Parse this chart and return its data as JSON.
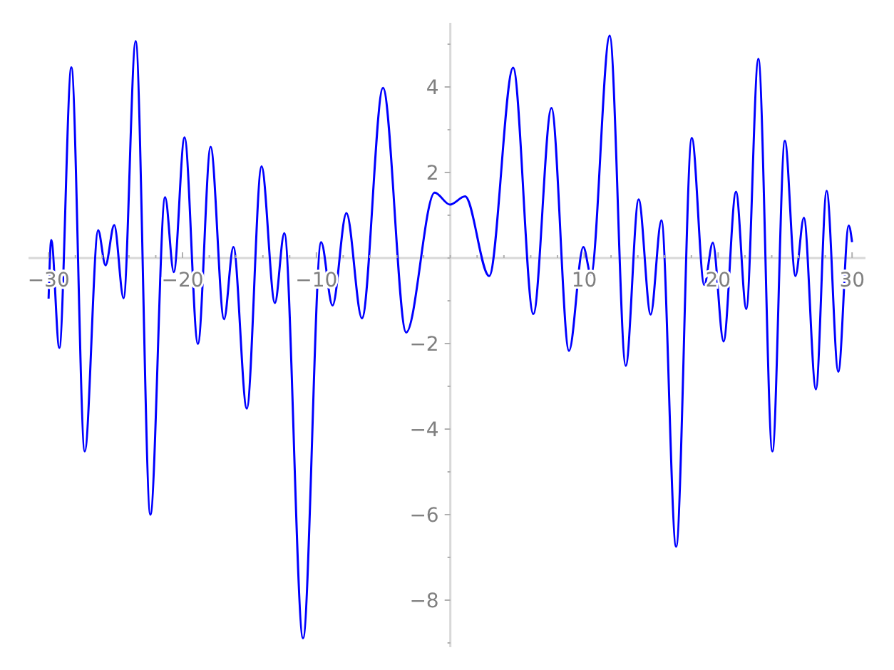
{
  "chart_data": {
    "type": "line",
    "color": "#0000ff",
    "line_style": "solid",
    "marker": "none",
    "x": [
      -30,
      -29.8,
      -29.2,
      -28.3,
      -27.3,
      -26.3,
      -25.75,
      -25.1,
      -24.4,
      -23.5,
      -22.4,
      -21.3,
      -20.65,
      -19.85,
      -18.85,
      -17.9,
      -16.9,
      -16.2,
      -15.2,
      -14.1,
      -13.1,
      -12.4,
      -11.0,
      -9.65,
      -8.8,
      -7.76,
      -6.6,
      -5.03,
      -3.3,
      -1.17,
      -0.03,
      1.1,
      2.9,
      4.69,
      6.2,
      7.55,
      8.86,
      9.93,
      10.5,
      11.9,
      13.1,
      14.06,
      14.96,
      15.76,
      16.86,
      18.03,
      18.96,
      19.6,
      20.4,
      21.33,
      22.1,
      23.0,
      24.05,
      24.98,
      25.77,
      26.4,
      27.3,
      28.1,
      28.97,
      29.75,
      30
    ],
    "values": [
      -0.95,
      0.42,
      -2.1,
      4.46,
      -4.52,
      0.65,
      -0.17,
      0.77,
      -0.94,
      5.07,
      -6.0,
      1.42,
      -0.33,
      2.82,
      -2.01,
      2.6,
      -1.43,
      0.26,
      -3.52,
      2.14,
      -1.05,
      0.58,
      -8.89,
      0.37,
      -1.11,
      1.05,
      -1.41,
      3.98,
      -1.74,
      1.53,
      1.25,
      1.44,
      -0.42,
      4.45,
      -1.31,
      3.51,
      -2.17,
      0.26,
      -0.39,
      5.2,
      -2.52,
      1.37,
      -1.32,
      0.88,
      -6.75,
      2.81,
      -0.63,
      0.36,
      -1.95,
      1.55,
      -1.19,
      4.66,
      -4.52,
      2.74,
      -0.42,
      0.94,
      -3.07,
      1.57,
      -2.66,
      0.76,
      0.37
    ],
    "xlim": [
      -31.5,
      31
    ],
    "ylim": [
      -9.1,
      5.5
    ],
    "xticks": [
      -30,
      {
        "value": -28,
        "label": null
      },
      {
        "value": -26,
        "label": null
      },
      {
        "value": -24,
        "label": null
      },
      {
        "value": -22,
        "label": null
      },
      -20,
      {
        "value": -18,
        "label": null
      },
      {
        "value": -16,
        "label": null
      },
      {
        "value": -14,
        "label": null
      },
      {
        "value": -12,
        "label": null
      },
      -10,
      {
        "value": -8,
        "label": null
      },
      {
        "value": -6,
        "label": null
      },
      {
        "value": -4,
        "label": null
      },
      {
        "value": -2,
        "label": null
      },
      {
        "value": 0,
        "label": null
      },
      {
        "value": 2,
        "label": null
      },
      {
        "value": 4,
        "label": null
      },
      {
        "value": 6,
        "label": null
      },
      {
        "value": 8,
        "label": null
      },
      10,
      {
        "value": 12,
        "label": null
      },
      {
        "value": 14,
        "label": null
      },
      {
        "value": 16,
        "label": null
      },
      {
        "value": 18,
        "label": null
      },
      20,
      {
        "value": 22,
        "label": null
      },
      {
        "value": 24,
        "label": null
      },
      {
        "value": 26,
        "label": null
      },
      {
        "value": 28,
        "label": null
      },
      30
    ],
    "yticks": [
      {
        "value": -9,
        "label": null
      },
      -8,
      {
        "value": -7,
        "label": null
      },
      -6,
      {
        "value": -5,
        "label": null
      },
      -4,
      {
        "value": -3,
        "label": null
      },
      -2,
      {
        "value": -1,
        "label": null
      },
      {
        "value": 0,
        "label": null
      },
      {
        "value": 1,
        "label": null
      },
      2,
      {
        "value": 3,
        "label": null
      },
      4,
      {
        "value": 5,
        "label": null
      }
    ]
  }
}
